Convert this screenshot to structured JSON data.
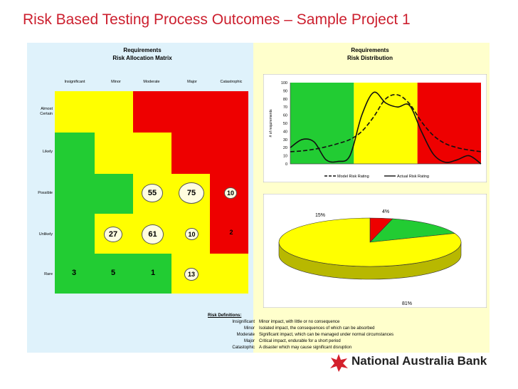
{
  "page": {
    "title": "Risk Based Testing Process Outcomes – Sample Project 1"
  },
  "matrix": {
    "title_line1": "Requirements",
    "title_line2": "Risk Allocation Matrix",
    "impact_labels": [
      "Insignificant",
      "Minor",
      "Moderate",
      "Major",
      "Catastrophic"
    ],
    "likelihood_labels": [
      "Almost Certain",
      "Likely",
      "Possible",
      "Unlikely",
      "Rare"
    ],
    "colors": {
      "green": "#22cc33",
      "yellow": "#ffff00",
      "red": "#ee0000"
    },
    "cells": [
      [
        "yellow",
        "yellow",
        "red",
        "red",
        "red"
      ],
      [
        "green",
        "yellow",
        "yellow",
        "red",
        "red"
      ],
      [
        "green",
        "green",
        "yellow",
        "yellow",
        "red"
      ],
      [
        "green",
        "yellow",
        "yellow",
        "yellow",
        "red"
      ],
      [
        "green",
        "green",
        "green",
        "yellow",
        "yellow"
      ]
    ],
    "counts": {
      "possible_moderate": "55",
      "possible_major": "75",
      "possible_catastrophic": "10",
      "unlikely_minor": "27",
      "unlikely_moderate": "61",
      "unlikely_major": "10",
      "unlikely_catastrophic": "2",
      "rare_insignificant": "3",
      "rare_minor": "5",
      "rare_moderate": "1",
      "rare_major": "13"
    }
  },
  "distribution": {
    "title_line1": "Requirements",
    "title_line2": "Risk Distribution"
  },
  "chart_data": [
    {
      "type": "line",
      "title": "Requirements Risk Distribution",
      "ylabel": "# of requirements",
      "xlabel": "",
      "ylim": [
        0,
        100
      ],
      "yticks": [
        0,
        10,
        20,
        30,
        40,
        50,
        60,
        70,
        80,
        90,
        100
      ],
      "background_bands": [
        "#22cc33",
        "#ffff00",
        "#ee0000"
      ],
      "legend": "bottom",
      "series": [
        {
          "name": "Model Risk Rating",
          "style": "dashed",
          "x": [
            0,
            1,
            2,
            3,
            4,
            5,
            6,
            7,
            8,
            9,
            10,
            11,
            12,
            13,
            14,
            15,
            16
          ],
          "values": [
            15,
            16,
            18,
            21,
            25,
            30,
            40,
            58,
            80,
            85,
            74,
            52,
            35,
            25,
            20,
            17,
            15
          ]
        },
        {
          "name": "Actual Risk Rating",
          "style": "solid",
          "x": [
            0,
            1,
            2,
            3,
            4,
            5,
            6,
            7,
            8,
            9,
            10,
            11,
            12,
            13,
            14,
            15,
            16
          ],
          "values": [
            20,
            30,
            27,
            5,
            3,
            10,
            60,
            88,
            75,
            70,
            72,
            40,
            12,
            2,
            5,
            10,
            0
          ]
        }
      ]
    },
    {
      "type": "pie",
      "labels": [
        "4%",
        "15%",
        "81%"
      ],
      "values": [
        4,
        15,
        81
      ],
      "colors": [
        "#ee0000",
        "#22cc33",
        "#ffff00"
      ]
    }
  ],
  "definitions": {
    "title": "Risk Definitions:",
    "items": [
      {
        "term": "Insignificant",
        "text": "Minor impact, with little or no consequence"
      },
      {
        "term": "Minor",
        "text": "Isolated impact, the consequences of which can be absorbed"
      },
      {
        "term": "Moderate",
        "text": "Significant impact, which can be managed under normal circumstances"
      },
      {
        "term": "Major",
        "text": "Critical impact, endurable for a short period"
      },
      {
        "term": "Catastophic",
        "text": "A disaster which may cause significant disruption"
      }
    ]
  },
  "logo": {
    "text": "National Australia Bank",
    "star_color": "#d4202c"
  }
}
